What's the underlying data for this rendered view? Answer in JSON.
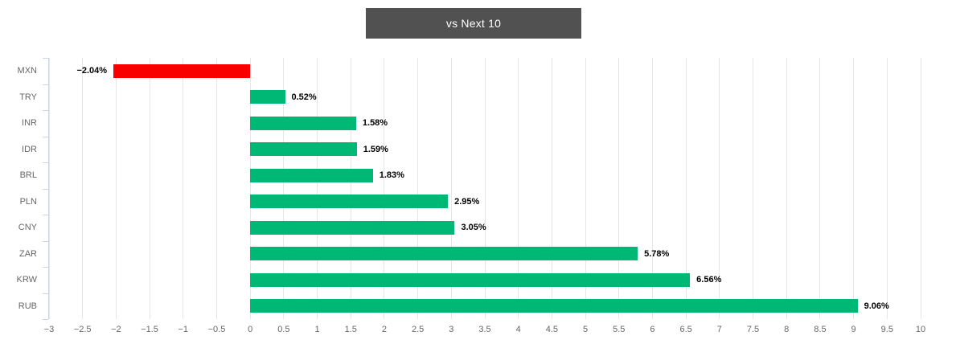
{
  "title": {
    "text": "vs Next 10"
  },
  "colors": {
    "background": "#ffffff",
    "title_bg": "#515151",
    "title_text": "#ffffff",
    "positive_bar": "#00b876",
    "negative_bar": "#f90000",
    "grid": "#e6e6e6",
    "axis_line": "#ccd6eb",
    "axis_label": "#666666",
    "data_label": "#000000"
  },
  "chart_data": {
    "type": "bar",
    "orientation": "horizontal",
    "title": "vs Next 10",
    "categories": [
      "MXN",
      "TRY",
      "INR",
      "IDR",
      "BRL",
      "PLN",
      "CNY",
      "ZAR",
      "KRW",
      "RUB"
    ],
    "values": [
      -2.04,
      0.52,
      1.58,
      1.59,
      1.83,
      2.95,
      3.05,
      5.78,
      6.56,
      9.06
    ],
    "data_labels": [
      "−2.04%",
      "0.52%",
      "1.58%",
      "1.59%",
      "1.83%",
      "2.95%",
      "3.05%",
      "5.78%",
      "6.56%",
      "9.06%"
    ],
    "xlabel": "",
    "ylabel": "",
    "xlim": [
      -3,
      10
    ],
    "x_tick_values": [
      -3,
      -2.5,
      -2,
      -1.5,
      -1,
      -0.5,
      0,
      0.5,
      1,
      1.5,
      2,
      2.5,
      3,
      3.5,
      4,
      4.5,
      5,
      5.5,
      6,
      6.5,
      7,
      7.5,
      8,
      8.5,
      9,
      9.5,
      10
    ],
    "x_tick_labels": [
      "−3",
      "−2.5",
      "−2",
      "−1.5",
      "−1",
      "−0.5",
      "0",
      "0.5",
      "1",
      "1.5",
      "2",
      "2.5",
      "3",
      "3.5",
      "4",
      "4.5",
      "5",
      "5.5",
      "6",
      "6.5",
      "7",
      "7.5",
      "8",
      "8.5",
      "9",
      "9.5",
      "10"
    ],
    "grid": true,
    "legend": false
  }
}
